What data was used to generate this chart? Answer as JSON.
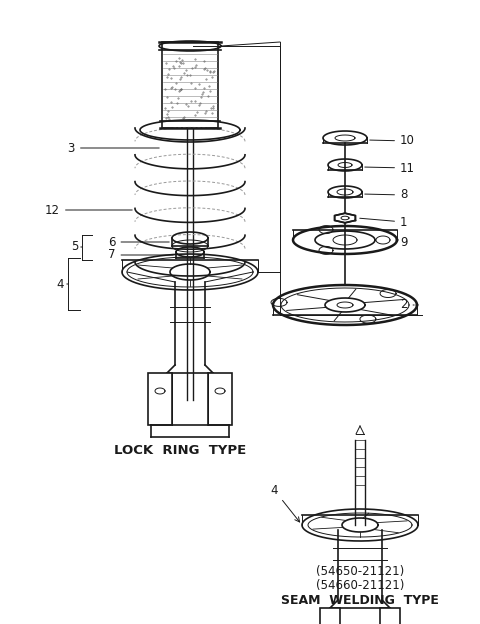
{
  "background_color": "#ffffff",
  "line_color": "#1a1a1a",
  "lw_main": 1.2,
  "lw_thin": 0.7,
  "lw_thick": 1.8,
  "label_fontsize": 8.5,
  "text_fontsize": 8.5,
  "lock_ring_label": "LOCK  RING  TYPE",
  "seam_line1": "(54650-21121)",
  "seam_line2": "(54660-21121)",
  "seam_line3": "SEAM  WELDING  TYPE",
  "figsize": [
    4.8,
    6.24
  ],
  "dpi": 100,
  "xlim": [
    0,
    480
  ],
  "ylim": [
    0,
    624
  ]
}
